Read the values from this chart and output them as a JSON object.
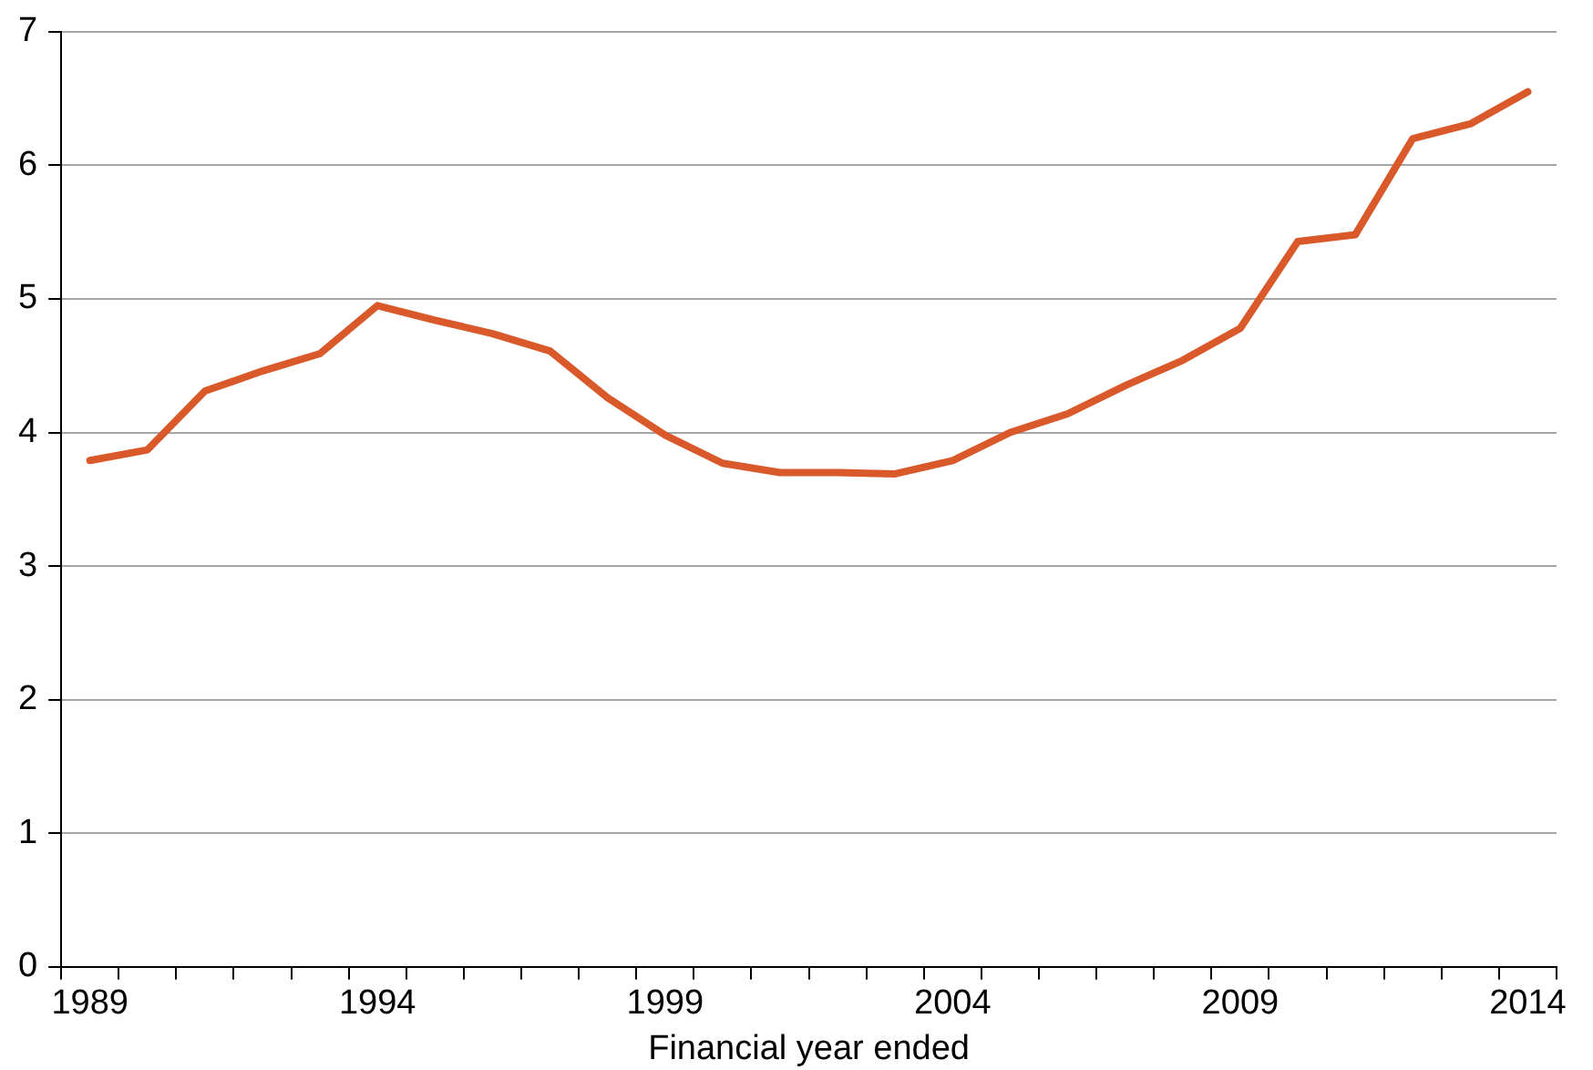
{
  "chart_data": {
    "type": "line",
    "xlabel": "Financial year ended",
    "categories": [
      "1989",
      null,
      null,
      null,
      null,
      "1994",
      null,
      null,
      null,
      null,
      "1999",
      null,
      null,
      null,
      null,
      "2004",
      null,
      null,
      null,
      null,
      "2009",
      null,
      null,
      null,
      null,
      "2014"
    ],
    "series": [
      {
        "color": "#d9592a",
        "values": [
          3.79,
          3.87,
          4.31,
          4.46,
          4.59,
          4.95,
          4.84,
          4.74,
          4.61,
          4.26,
          3.98,
          3.77,
          3.7,
          3.7,
          3.69,
          3.79,
          4.0,
          4.14,
          4.35,
          4.54,
          4.78,
          5.43,
          5.48,
          6.2,
          6.31,
          6.55
        ]
      }
    ],
    "ylim": [
      0,
      7
    ],
    "yticks": [
      0,
      1,
      2,
      3,
      4,
      5,
      6,
      7
    ],
    "grid": "y",
    "legend": false,
    "marker": "none",
    "line_style": "solid"
  }
}
